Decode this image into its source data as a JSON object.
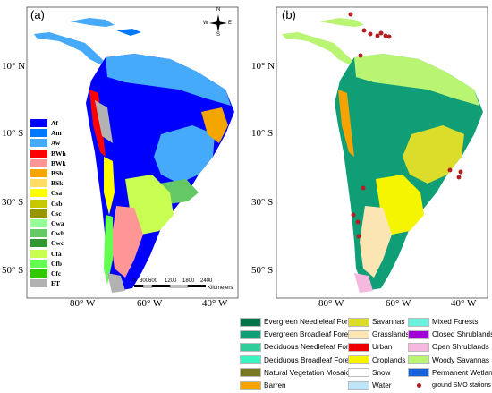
{
  "panel_a": {
    "label": "(a)",
    "lat_labels": [
      "10° N",
      "10° S",
      "30° S",
      "50° S"
    ],
    "lon_labels": [
      "80° W",
      "60° W",
      "40° W"
    ],
    "compass": {
      "n": "N",
      "s": "S",
      "e": "E",
      "w": "W"
    },
    "scale": {
      "ticks": [
        "0",
        "300",
        "600",
        "1200",
        "1800",
        "2400"
      ],
      "unit": "Kilometers"
    },
    "legend": [
      {
        "code": "Af",
        "color": "#0000fe"
      },
      {
        "code": "Am",
        "color": "#0078ff"
      },
      {
        "code": "Aw",
        "color": "#46aafa"
      },
      {
        "code": "BWh",
        "color": "#ff0000"
      },
      {
        "code": "BWk",
        "color": "#ff9696"
      },
      {
        "code": "BSh",
        "color": "#f5a500"
      },
      {
        "code": "BSk",
        "color": "#ffdc64"
      },
      {
        "code": "Csa",
        "color": "#ffff00"
      },
      {
        "code": "Csb",
        "color": "#c8c800"
      },
      {
        "code": "Csc",
        "color": "#969600"
      },
      {
        "code": "Cwa",
        "color": "#96ff96"
      },
      {
        "code": "Cwb",
        "color": "#64c864"
      },
      {
        "code": "Cwc",
        "color": "#329632"
      },
      {
        "code": "Cfa",
        "color": "#c8ff50"
      },
      {
        "code": "Cfb",
        "color": "#64ff50"
      },
      {
        "code": "Cfc",
        "color": "#32c800"
      },
      {
        "code": "ET",
        "color": "#b2b2b2"
      }
    ]
  },
  "panel_b": {
    "label": "(b)",
    "lat_labels": [
      "10° N",
      "10° S",
      "30° S",
      "50° S"
    ],
    "lon_labels": [
      "80° W",
      "60° W",
      "40° W"
    ]
  },
  "landcover_legend": {
    "col1": [
      {
        "label": "Evergreen Needleleaf Forests",
        "color": "#05734a"
      },
      {
        "label": "Evergreen Broadleaf Forests",
        "color": "#0f9e76"
      },
      {
        "label": "Deciduous Needleleaf Forests",
        "color": "#30cc9a"
      },
      {
        "label": "Deciduous Broadleaf Forests",
        "color": "#3af5c0"
      },
      {
        "label": "Natural Vegetation Mosaics",
        "color": "#787820"
      },
      {
        "label": "Barren",
        "color": "#f5a300"
      }
    ],
    "col2": [
      {
        "label": "Savannas",
        "color": "#dcdc2a"
      },
      {
        "label": "Grasslands",
        "color": "#fbe6b3"
      },
      {
        "label": "Urban",
        "color": "#ef0000"
      },
      {
        "label": "Croplands",
        "color": "#f5f500"
      },
      {
        "label": "Snow",
        "color": "#ffffff"
      },
      {
        "label": "Water",
        "color": "#bfe6f8"
      }
    ],
    "col3": [
      {
        "label": "Mixed Forests",
        "color": "#6af2df"
      },
      {
        "label": "Closed Shrublands",
        "color": "#a200d8"
      },
      {
        "label": "Open Shrublands",
        "color": "#f6b8de"
      },
      {
        "label": "Woody Savannas",
        "color": "#b9f573"
      },
      {
        "label": "Permanent Wetlands",
        "color": "#1663d9"
      },
      {
        "label": "ground SMO stations",
        "color": "#b02020"
      }
    ]
  }
}
